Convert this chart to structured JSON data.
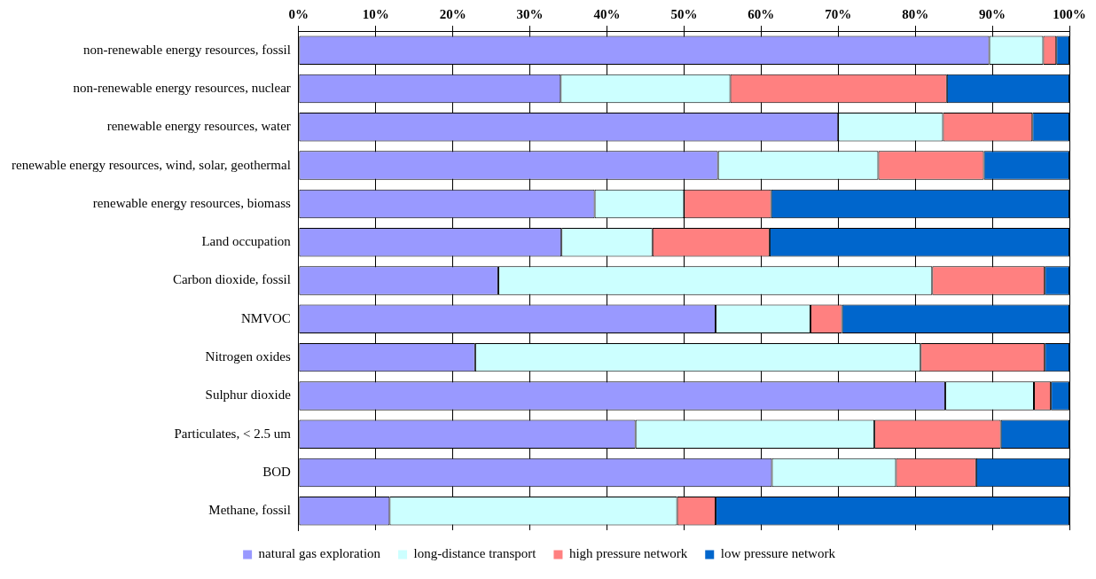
{
  "chart_data": {
    "type": "bar",
    "orientation": "horizontal",
    "stacked": true,
    "categories": [
      "non-renewable energy resources, fossil",
      "non-renewable energy resources, nuclear",
      "renewable energy resources, water",
      "renewable energy resources, wind, solar, geothermal",
      "renewable energy resources, biomass",
      "Land occupation",
      "Carbon dioxide, fossil",
      "NMVOC",
      "Nitrogen oxides",
      "Sulphur dioxide",
      "Particulates, < 2.5 um",
      "BOD",
      "Methane, fossil"
    ],
    "series": [
      {
        "name": "natural gas exploration",
        "color": "#9999ff",
        "values": [
          89.6,
          34.0,
          70.0,
          54.4,
          38.4,
          34.1,
          25.9,
          54.1,
          22.9,
          83.9,
          43.7,
          61.4,
          11.8
        ]
      },
      {
        "name": "long-distance transport",
        "color": "#ccffff",
        "values": [
          7.0,
          22.0,
          13.6,
          20.8,
          11.6,
          11.8,
          56.3,
          12.3,
          57.8,
          11.5,
          31.0,
          16.1,
          37.3
        ]
      },
      {
        "name": "high pressure network",
        "color": "#ff8080",
        "values": [
          1.7,
          28.1,
          11.6,
          13.7,
          11.3,
          15.2,
          14.6,
          4.1,
          16.1,
          2.2,
          16.4,
          10.4,
          5.0
        ]
      },
      {
        "name": "low pressure network",
        "color": "#0066cc",
        "values": [
          1.7,
          15.9,
          4.8,
          11.1,
          38.7,
          38.9,
          3.2,
          29.5,
          3.2,
          2.4,
          8.9,
          12.1,
          45.9
        ]
      }
    ],
    "xlim": [
      0,
      100
    ],
    "xticks": [
      {
        "value": 0,
        "label": "0%"
      },
      {
        "value": 10,
        "label": "10%"
      },
      {
        "value": 20,
        "label": "20%"
      },
      {
        "value": 30,
        "label": "30%"
      },
      {
        "value": 40,
        "label": "40%"
      },
      {
        "value": 50,
        "label": "50%"
      },
      {
        "value": 60,
        "label": "60%"
      },
      {
        "value": 70,
        "label": "70%"
      },
      {
        "value": 80,
        "label": "80%"
      },
      {
        "value": 90,
        "label": "90%"
      },
      {
        "value": 100,
        "label": "100%"
      }
    ],
    "grid": "x",
    "legend": "bottom"
  }
}
